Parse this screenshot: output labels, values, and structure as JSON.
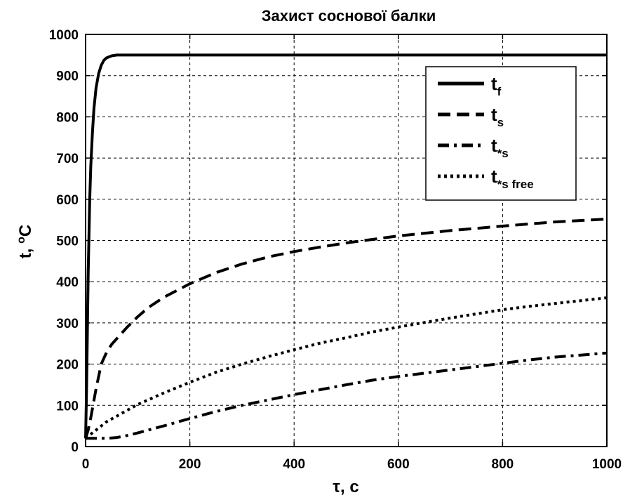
{
  "chart_data": {
    "type": "line",
    "title": "Захист соснової балки",
    "xlabel": {
      "main": "τ, с"
    },
    "ylabel": {
      "main": "t, ",
      "sup": "o",
      "tail": "C"
    },
    "xlim": [
      0,
      1000
    ],
    "ylim": [
      0,
      1000
    ],
    "xticks": [
      0,
      200,
      400,
      600,
      800,
      1000
    ],
    "yticks": [
      0,
      100,
      200,
      300,
      400,
      500,
      600,
      700,
      800,
      900,
      1000
    ],
    "grid": true,
    "legend_position": "top-right",
    "series": [
      {
        "name": "t_f",
        "legend": {
          "base": "t",
          "sub": "f"
        },
        "style": "solid",
        "x": [
          0,
          2,
          5,
          8,
          10,
          13,
          16,
          20,
          25,
          30,
          35,
          40,
          50,
          60,
          80,
          100,
          200,
          400,
          600,
          800,
          1000
        ],
        "y": [
          20,
          150,
          420,
          600,
          680,
          760,
          820,
          870,
          905,
          925,
          937,
          943,
          948,
          950,
          950,
          950,
          950,
          950,
          950,
          950,
          950
        ]
      },
      {
        "name": "t_s",
        "legend": {
          "base": "t",
          "sub": "s"
        },
        "style": "dashed",
        "x": [
          0,
          5,
          10,
          20,
          30,
          40,
          50,
          60,
          80,
          100,
          120,
          150,
          200,
          250,
          300,
          350,
          400,
          450,
          500,
          600,
          700,
          800,
          900,
          1000
        ],
        "y": [
          20,
          40,
          70,
          140,
          200,
          228,
          248,
          262,
          290,
          315,
          337,
          362,
          395,
          422,
          443,
          460,
          473,
          484,
          494,
          511,
          524,
          535,
          545,
          552
        ]
      },
      {
        "name": "t*_s",
        "legend": {
          "base": "t",
          "sub": "*s"
        },
        "style": "dashdot",
        "x": [
          0,
          20,
          40,
          60,
          80,
          100,
          150,
          200,
          250,
          300,
          350,
          400,
          450,
          500,
          550,
          600,
          650,
          700,
          750,
          800,
          850,
          900,
          950,
          1000
        ],
        "y": [
          20,
          20,
          20,
          22,
          27,
          33,
          50,
          68,
          85,
          100,
          113,
          126,
          138,
          150,
          161,
          170,
          178,
          186,
          194,
          202,
          210,
          217,
          222,
          227
        ]
      },
      {
        "name": "t*_s free",
        "legend": {
          "base": "t",
          "sub": "*s free"
        },
        "style": "dotted",
        "x": [
          0,
          20,
          40,
          60,
          80,
          100,
          150,
          200,
          250,
          300,
          350,
          400,
          450,
          500,
          550,
          600,
          650,
          700,
          750,
          800,
          850,
          900,
          950,
          1000
        ],
        "y": [
          20,
          40,
          60,
          74,
          88,
          102,
          130,
          156,
          180,
          200,
          218,
          235,
          251,
          264,
          278,
          290,
          301,
          312,
          322,
          332,
          340,
          347,
          354,
          361
        ]
      }
    ]
  }
}
